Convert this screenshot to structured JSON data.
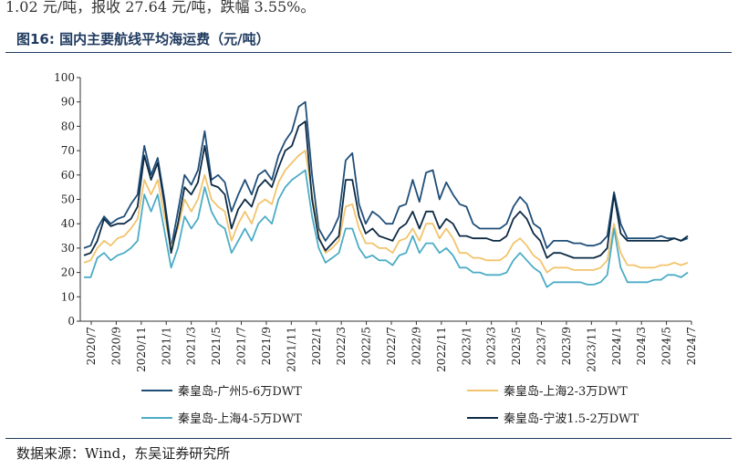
{
  "header": {
    "intro_text": "1.02 元/吨，报收 27.64 元/吨，跌幅 3.55%。",
    "figure_title": "图16:  国内主要航线平均海运费（元/吨）"
  },
  "footer": {
    "source": "数据来源：Wind，东吴证券研究所"
  },
  "chart_data": {
    "type": "line",
    "title": "国内主要航线平均海运费（元/吨）",
    "ylim": [
      0,
      100
    ],
    "y_ticks": [
      0,
      10,
      20,
      30,
      40,
      50,
      60,
      70,
      80,
      90,
      100
    ],
    "x_tick_labels": [
      "2020/7",
      "2020/9",
      "2020/11",
      "2021/1",
      "2021/3",
      "2021/5",
      "2021/7",
      "2021/9",
      "2021/11",
      "2022/1",
      "2022/3",
      "2022/5",
      "2022/7",
      "2022/9",
      "2022/11",
      "2023/1",
      "2023/3",
      "2023/5",
      "2023/7",
      "2023/9",
      "2023/11",
      "2024/1",
      "2024/3",
      "2024/5",
      "2024/7"
    ],
    "legend_placement": "bottom",
    "grid": false,
    "series": [
      {
        "name": "秦皇岛-广州5-6万DWT",
        "color": "#1f4e79",
        "values": [
          30,
          31,
          38,
          43,
          40,
          42,
          43,
          48,
          52,
          72,
          60,
          67,
          50,
          30,
          45,
          60,
          56,
          62,
          78,
          58,
          60,
          57,
          45,
          52,
          58,
          52,
          60,
          62,
          58,
          68,
          74,
          78,
          88,
          90,
          60,
          38,
          33,
          37,
          43,
          66,
          69,
          48,
          40,
          45,
          43,
          40,
          40,
          47,
          48,
          58,
          49,
          61,
          62,
          50,
          57,
          52,
          48,
          47,
          40,
          38,
          38,
          38,
          38,
          40,
          47,
          51,
          48,
          40,
          38,
          30,
          33,
          33,
          33,
          32,
          32,
          31,
          31,
          32,
          35,
          53,
          40,
          34,
          34,
          34,
          34,
          34,
          35,
          34,
          34,
          33,
          34
        ]
      },
      {
        "name": "秦皇岛-上海2-3万DWT",
        "color": "#f2c46d",
        "values": [
          24,
          25,
          30,
          33,
          31,
          34,
          35,
          38,
          42,
          58,
          52,
          58,
          43,
          30,
          38,
          50,
          45,
          50,
          60,
          50,
          47,
          45,
          33,
          40,
          45,
          40,
          48,
          50,
          48,
          57,
          62,
          65,
          68,
          70,
          52,
          35,
          28,
          30,
          33,
          47,
          48,
          38,
          32,
          32,
          30,
          30,
          28,
          33,
          34,
          38,
          33,
          40,
          40,
          34,
          38,
          34,
          28,
          28,
          26,
          26,
          25,
          25,
          25,
          27,
          32,
          34,
          31,
          27,
          25,
          20,
          22,
          22,
          22,
          21,
          21,
          21,
          21,
          22,
          25,
          40,
          28,
          23,
          23,
          22,
          22,
          22,
          23,
          23,
          24,
          23,
          24
        ]
      },
      {
        "name": "秦皇岛-上海4-5万DWT",
        "color": "#4bacc6",
        "values": [
          18,
          18,
          26,
          28,
          25,
          27,
          28,
          30,
          33,
          52,
          45,
          52,
          37,
          22,
          30,
          43,
          38,
          42,
          55,
          45,
          40,
          38,
          28,
          33,
          38,
          33,
          40,
          43,
          40,
          50,
          55,
          58,
          60,
          62,
          43,
          30,
          24,
          26,
          28,
          38,
          38,
          30,
          26,
          27,
          25,
          25,
          23,
          27,
          28,
          35,
          28,
          32,
          32,
          28,
          30,
          27,
          22,
          22,
          20,
          20,
          19,
          19,
          19,
          20,
          25,
          28,
          25,
          22,
          20,
          14,
          16,
          16,
          16,
          16,
          16,
          15,
          15,
          16,
          19,
          38,
          22,
          16,
          16,
          16,
          16,
          17,
          17,
          19,
          19,
          18,
          20
        ]
      },
      {
        "name": "秦皇岛-宁波1.5-2万DWT",
        "color": "#0d2b45",
        "values": [
          27,
          28,
          33,
          42,
          39,
          40,
          40,
          42,
          47,
          68,
          58,
          65,
          48,
          28,
          40,
          55,
          52,
          57,
          72,
          56,
          55,
          52,
          38,
          46,
          50,
          47,
          55,
          58,
          55,
          63,
          70,
          72,
          80,
          82,
          50,
          34,
          29,
          32,
          35,
          58,
          58,
          43,
          36,
          38,
          35,
          34,
          33,
          38,
          40,
          45,
          38,
          45,
          45,
          38,
          42,
          40,
          35,
          35,
          34,
          34,
          34,
          33,
          33,
          35,
          42,
          45,
          42,
          36,
          33,
          26,
          28,
          28,
          27,
          26,
          26,
          26,
          26,
          27,
          30,
          52,
          36,
          33,
          33,
          33,
          33,
          33,
          33,
          33,
          34,
          33,
          35
        ]
      }
    ]
  }
}
